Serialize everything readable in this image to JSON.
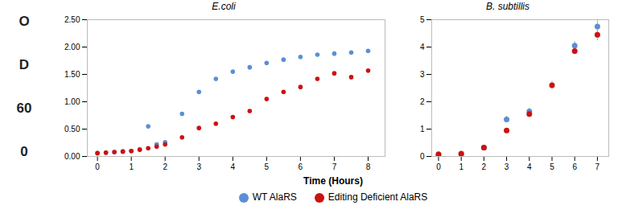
{
  "xlabel": "Time (Hours)",
  "ylabel": [
    "O",
    "D",
    "60",
    "0"
  ],
  "legend": "bottom",
  "chart_data": [
    {
      "type": "scatter",
      "title": "E.coli",
      "series": [
        {
          "name": "WT AlaRS",
          "color": "#5B8FD4",
          "x": [
            0,
            0.25,
            0.5,
            0.75,
            1,
            1.25,
            1.5,
            1.75,
            2,
            2.5,
            3,
            3.5,
            4,
            4.5,
            5,
            5.5,
            6,
            6.5,
            7,
            7.5,
            8
          ],
          "values": [
            0.06,
            0.07,
            0.08,
            0.09,
            0.1,
            0.13,
            0.55,
            0.22,
            0.26,
            0.78,
            1.18,
            1.42,
            1.55,
            1.63,
            1.71,
            1.77,
            1.82,
            1.86,
            1.88,
            1.9,
            1.93
          ]
        },
        {
          "name": "Editing Deficient AlaRS",
          "color": "#CC1111",
          "x": [
            0,
            0.25,
            0.5,
            0.75,
            1,
            1.25,
            1.5,
            1.75,
            2,
            2.5,
            3,
            3.5,
            4,
            4.5,
            5,
            5.5,
            6,
            6.5,
            7,
            7.5,
            8
          ],
          "values": [
            0.06,
            0.07,
            0.08,
            0.09,
            0.1,
            0.12,
            0.15,
            0.18,
            0.22,
            0.35,
            0.52,
            0.6,
            0.72,
            0.83,
            1.05,
            1.18,
            1.27,
            1.42,
            1.52,
            1.45,
            1.57
          ]
        }
      ],
      "xlim": [
        -0.3,
        8.5
      ],
      "xticks": [
        0,
        1,
        2,
        3,
        4,
        5,
        6,
        7,
        8
      ],
      "ylim": [
        0,
        2.5
      ],
      "yticks": [
        {
          "value": 0,
          "label": "0.00"
        },
        {
          "value": 0.5,
          "label": "0.50"
        },
        {
          "value": 1,
          "label": "1.00"
        },
        {
          "value": 1.5,
          "label": "1.50"
        },
        {
          "value": 2,
          "label": "2.00"
        },
        {
          "value": 2.5,
          "label": "2.50"
        }
      ]
    },
    {
      "type": "scatter",
      "title": "B. subtillis",
      "series": [
        {
          "name": "WT AlaRS",
          "color": "#5B8FD4",
          "x": [
            0,
            1,
            2,
            3,
            4,
            6,
            7
          ],
          "values": [
            0.05,
            0.08,
            0.32,
            1.35,
            1.65,
            4.05,
            4.75
          ],
          "yerr": [
            0.03,
            0.04,
            0.08,
            0.12,
            0.12,
            0.15,
            0.25
          ]
        },
        {
          "name": "Editing Deficient AlaRS",
          "color": "#CC1111",
          "x": [
            0,
            1,
            2,
            3,
            4,
            5,
            6,
            7
          ],
          "values": [
            0.08,
            0.1,
            0.32,
            0.95,
            1.55,
            2.6,
            3.85,
            4.45
          ],
          "yerr": [
            0.03,
            0.04,
            0.06,
            0.08,
            0.12,
            0.15,
            0.12,
            0.22
          ]
        }
      ],
      "xlim": [
        -0.3,
        7.5
      ],
      "xticks": [
        0,
        1,
        2,
        3,
        4,
        5,
        6,
        7
      ],
      "ylim": [
        0,
        5
      ],
      "yticks": [
        0,
        1,
        2,
        3,
        4,
        5
      ]
    }
  ]
}
